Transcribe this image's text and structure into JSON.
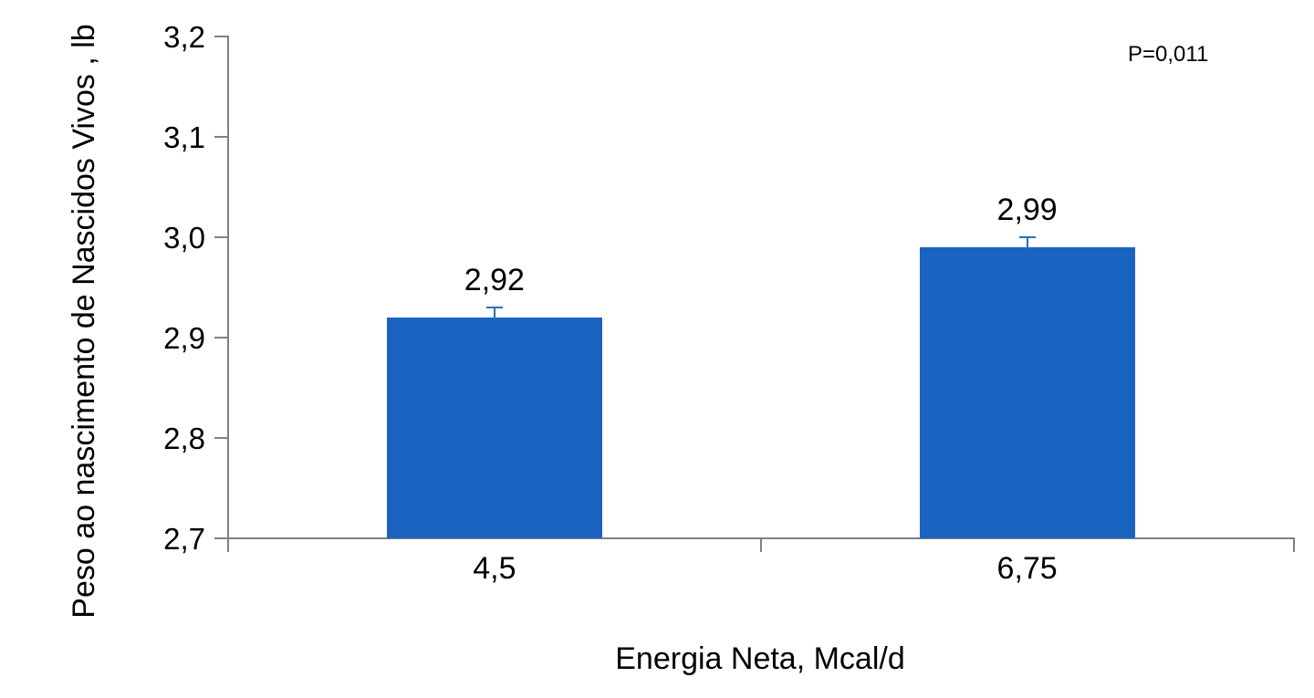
{
  "chart_data": {
    "type": "bar",
    "title": "",
    "xlabel": "Energia Neta, Mcal/d",
    "ylabel": "Peso ao nascimento de Nascidos Vivos , lb",
    "categories": [
      "4,5",
      "6,75"
    ],
    "values": [
      2.92,
      2.99
    ],
    "value_labels": [
      "2,92",
      "2,99"
    ],
    "errors_plus": [
      0.01,
      0.01
    ],
    "ylim": [
      2.7,
      3.2
    ],
    "ytick_values": [
      2.7,
      2.8,
      2.9,
      3.0,
      3.1,
      3.2
    ],
    "ytick_labels": [
      "2,7",
      "2,8",
      "2,9",
      "3,0",
      "3,1",
      "3,2"
    ],
    "p_value": "P=0,011",
    "legend_position": "none",
    "grid": "off",
    "bar_color": "#1b63c1",
    "error_bar_color": "#2e6fad",
    "axis_color": "#808080",
    "text_color": "#000000"
  }
}
